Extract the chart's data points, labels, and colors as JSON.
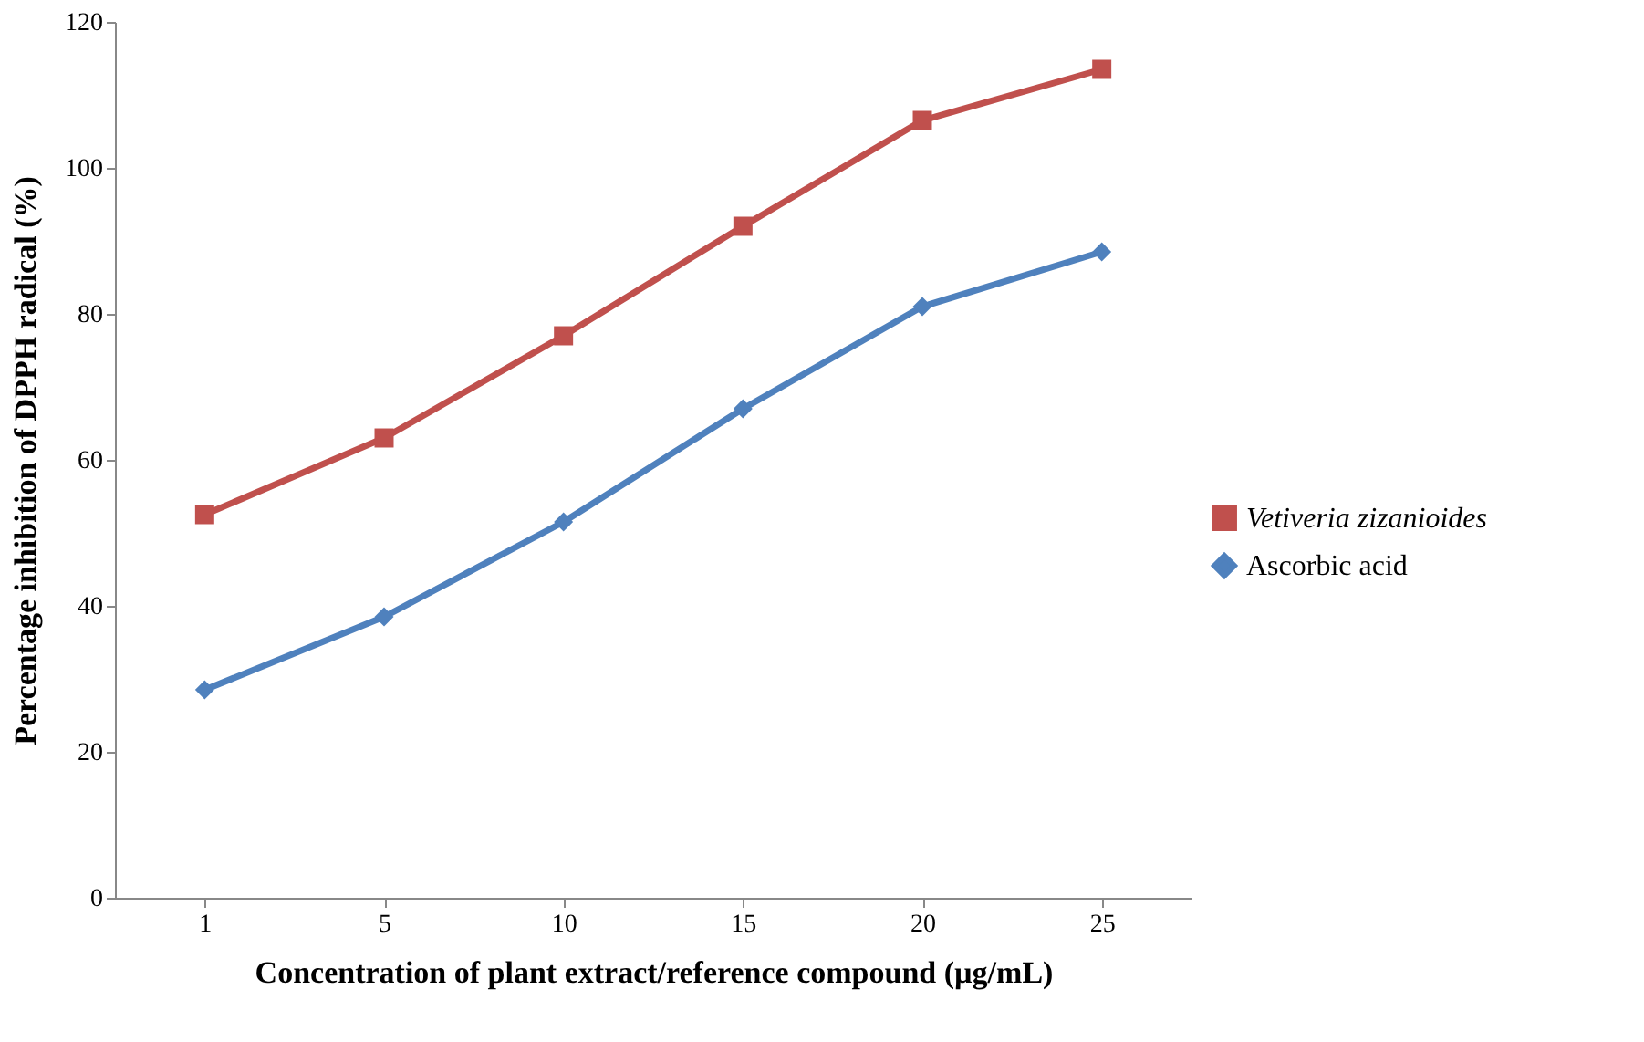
{
  "chart_data": {
    "type": "line",
    "xlabel": "Concentration of plant extract/reference compound (µg/mL)",
    "ylabel": "Percentage inhibition of DPPH radical (%)",
    "categories": [
      "1",
      "5",
      "10",
      "15",
      "20",
      "25"
    ],
    "series": [
      {
        "name": "Vetiveria zizanioides",
        "color": "#c0504d",
        "marker": "square",
        "values": [
          52.5,
          63,
          77,
          92,
          106.5,
          113.5
        ]
      },
      {
        "name": "Ascorbic acid",
        "color": "#4f81bd",
        "marker": "diamond",
        "values": [
          28.5,
          38.5,
          51.5,
          67,
          81,
          88.5
        ]
      }
    ],
    "ylim": [
      0,
      120
    ],
    "yticks": [
      0,
      20,
      40,
      60,
      80,
      100,
      120
    ],
    "legend": "right",
    "line_style": "solid"
  }
}
